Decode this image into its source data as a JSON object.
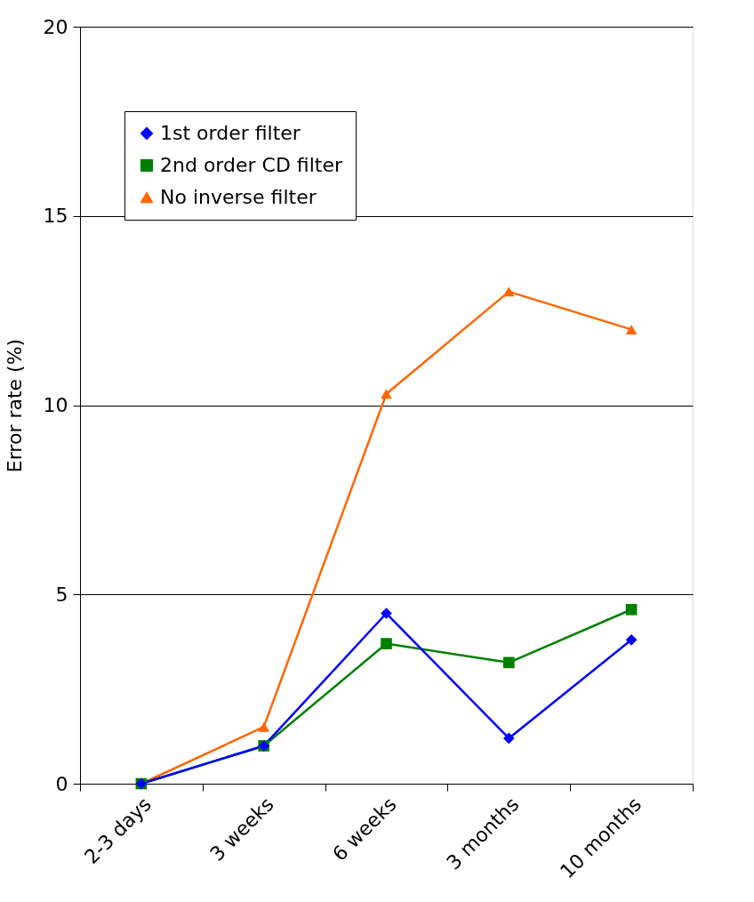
{
  "chart_data": {
    "type": "line",
    "ylabel": "Error rate (%)",
    "categories": [
      "2-3 days",
      "3 weeks",
      "6 weeks",
      "3 months",
      "10 months"
    ],
    "series": [
      {
        "name": "1st order filter",
        "color": "#0000ff",
        "marker": "diamond",
        "values": [
          0,
          1.0,
          4.5,
          1.2,
          3.8
        ]
      },
      {
        "name": "2nd order CD filter",
        "color": "#008000",
        "marker": "square",
        "values": [
          0,
          1.0,
          3.7,
          3.2,
          4.6
        ]
      },
      {
        "name": "No inverse filter",
        "color": "#ff6600",
        "marker": "triangle",
        "values": [
          0,
          1.5,
          10.3,
          13.0,
          12.0
        ]
      }
    ],
    "ylim": [
      0,
      20
    ],
    "yticks": [
      0,
      5,
      10,
      15,
      20
    ],
    "grid": "y",
    "legend": "top left"
  }
}
